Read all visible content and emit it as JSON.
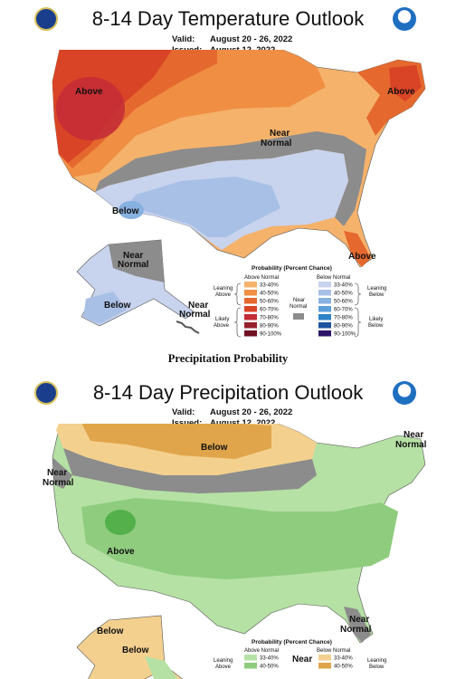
{
  "temperature": {
    "title": "8-14 Day Temperature Outlook",
    "valid_label": "Valid:",
    "valid": "August 20 - 26, 2022",
    "issued_label": "Issued:",
    "issued": "August 12, 2022",
    "regions": [
      "Above",
      "Above",
      "Near Normal",
      "Below",
      "Above",
      "Near Normal",
      "Below",
      "Near Normal"
    ],
    "legend": {
      "title": "Probability (Percent Chance)",
      "above_header": "Above Normal",
      "below_header": "Below Normal",
      "above": [
        "33-40%",
        "40-50%",
        "50-60%",
        "60-70%",
        "70-80%",
        "80-90%",
        "90-100%"
      ],
      "below": [
        "33-40%",
        "40-50%",
        "50-60%",
        "60-70%",
        "70-80%",
        "80-90%",
        "90-100%"
      ],
      "leaning_above": "Leaning Above",
      "likely_above": "Likely Above",
      "near_normal": "Near Normal",
      "leaning_below": "Leaning Below",
      "likely_below": "Likely Below",
      "above_colors": [
        "#f5b26b",
        "#f08e44",
        "#e5692e",
        "#d94426",
        "#c32b37",
        "#96202c",
        "#6e1020"
      ],
      "below_colors": [
        "#c8d3ee",
        "#a9c0e6",
        "#87b1e0",
        "#5c9fd9",
        "#2d82c8",
        "#1d53a0",
        "#2b1466"
      ],
      "near_color": "#8c8c8c"
    }
  },
  "separator": "Precipitation Probability",
  "precipitation": {
    "title": "8-14 Day Precipitation Outlook",
    "valid_label": "Valid:",
    "valid": "August 20 - 26, 2022",
    "issued_label": "Issued:",
    "issued": "August 12, 2022",
    "regions": [
      "Below",
      "Near Normal",
      "Near Normal",
      "Above",
      "Near",
      "Below",
      "Below",
      "Near Normal"
    ],
    "legend": {
      "title": "Probability (Percent Chance)",
      "above_header": "Above Normal",
      "below_header": "Below Normal",
      "above": [
        "33-40%",
        "40-50%"
      ],
      "below": [
        "33-40%",
        "40-50%"
      ],
      "leaning_above": "Leaning Above",
      "leaning_below": "Leaning Below",
      "above_colors": [
        "#b5e1a4",
        "#8fcc7e"
      ],
      "below_colors": [
        "#f4d08f",
        "#e0a54a"
      ]
    }
  }
}
